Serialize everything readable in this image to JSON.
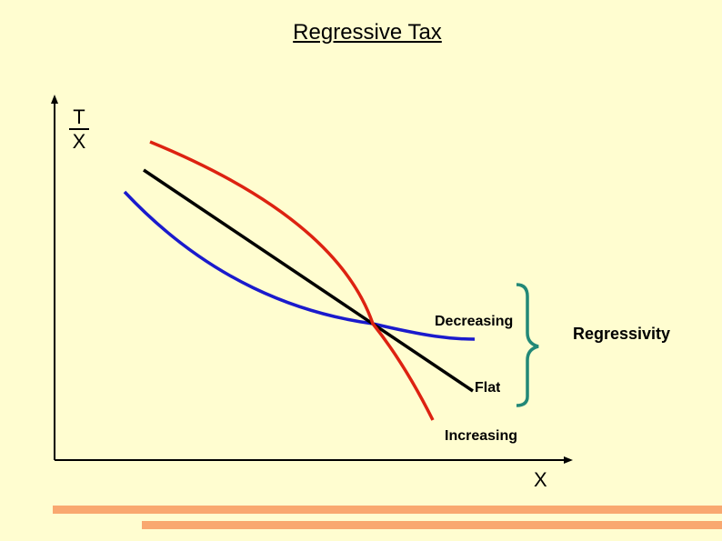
{
  "title": "Regressive Tax",
  "y_axis": {
    "numerator": "T",
    "denominator": "X"
  },
  "x_axis": {
    "label": "X"
  },
  "curves": [
    {
      "label": "Decreasing",
      "color": "#1a1acc"
    },
    {
      "label": "Flat",
      "color": "#000000"
    },
    {
      "label": "Increasing",
      "color": "#dd2211"
    }
  ],
  "bracket": {
    "label": "Regressivity",
    "color": "#228877"
  },
  "accent_bar_color": "#f9a870"
}
